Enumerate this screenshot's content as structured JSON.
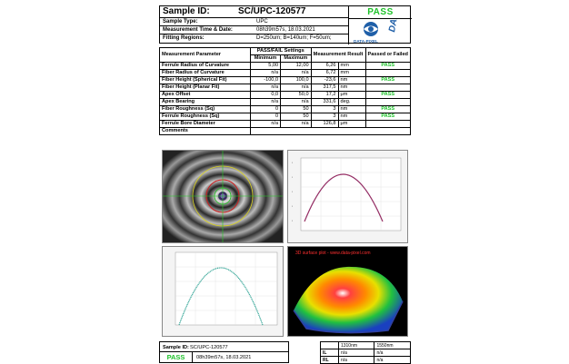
{
  "header": {
    "sample_id_label": "Sample ID:",
    "sample_id_value": "SC/UPC-120577",
    "sample_type_label": "Sample Type:",
    "sample_type_value": "UPC",
    "measurement_time_label": "Measurement Time & Date:",
    "measurement_time_value": "08h39m57s,  18.03.2021",
    "fitting_regions_label": "Fitting Regions:",
    "fitting_regions_value": "D=250um;  B=140um;  F=50um;",
    "status": "PASS",
    "logo_name": "DATA-PIXEL",
    "logo_mark": "DAISI"
  },
  "table": {
    "col_param": "Measurement Parameter",
    "col_settings": "PASS/FAIL Settings",
    "col_min": "Minimum",
    "col_max": "Maximum",
    "col_result": "Measurement Result",
    "col_passed": "Passed or Failed",
    "rows": [
      {
        "name": "Ferrule Radius of Curvature",
        "min": "5,00",
        "max": "12,00",
        "value": "6,26",
        "unit": "mm",
        "status": "PASS"
      },
      {
        "name": "Fiber Radius of Curvature",
        "min": "n/a",
        "max": "n/a",
        "value": "6,72",
        "unit": "mm",
        "status": ""
      },
      {
        "name": "Fiber Height (Spherical Fit)",
        "min": "-100,0",
        "max": "100,0",
        "value": "-23,6",
        "unit": "nm",
        "status": "PASS"
      },
      {
        "name": "Fiber Height (Planar Fit)",
        "min": "n/a",
        "max": "n/a",
        "value": "317,5",
        "unit": "nm",
        "status": ""
      },
      {
        "name": "Apex Offset",
        "min": "0,0",
        "max": "50,0",
        "value": "17,2",
        "unit": "μm",
        "status": "PASS"
      },
      {
        "name": "Apex Bearing",
        "min": "n/a",
        "max": "n/a",
        "value": "331,6",
        "unit": "deg.",
        "status": ""
      },
      {
        "name": "Fiber Roughness (Sq)",
        "min": "0",
        "max": "50",
        "value": "3",
        "unit": "nm",
        "status": "PASS"
      },
      {
        "name": "Ferrule Roughness (Sq)",
        "min": "0",
        "max": "50",
        "value": "3",
        "unit": "nm",
        "status": "PASS"
      },
      {
        "name": "Ferrule Bore Diameter",
        "min": "n/a",
        "max": "n/a",
        "value": "126,8",
        "unit": "μm",
        "status": ""
      }
    ],
    "comments_label": "Comments"
  },
  "plots": {
    "surface_title": "3D surface plot - www.data-pixel.com",
    "accent_pass": "#1ec22a"
  },
  "footer": {
    "sample_id_label": "Sample ID:",
    "sample_id_value": "SC/UPC-120577",
    "status": "PASS",
    "date": "08h39m57s,  18.03.2021",
    "wl1": "1310nm",
    "wl2": "1550nm",
    "il_label": "IL",
    "rl_label": "RL",
    "na": "n/a"
  }
}
